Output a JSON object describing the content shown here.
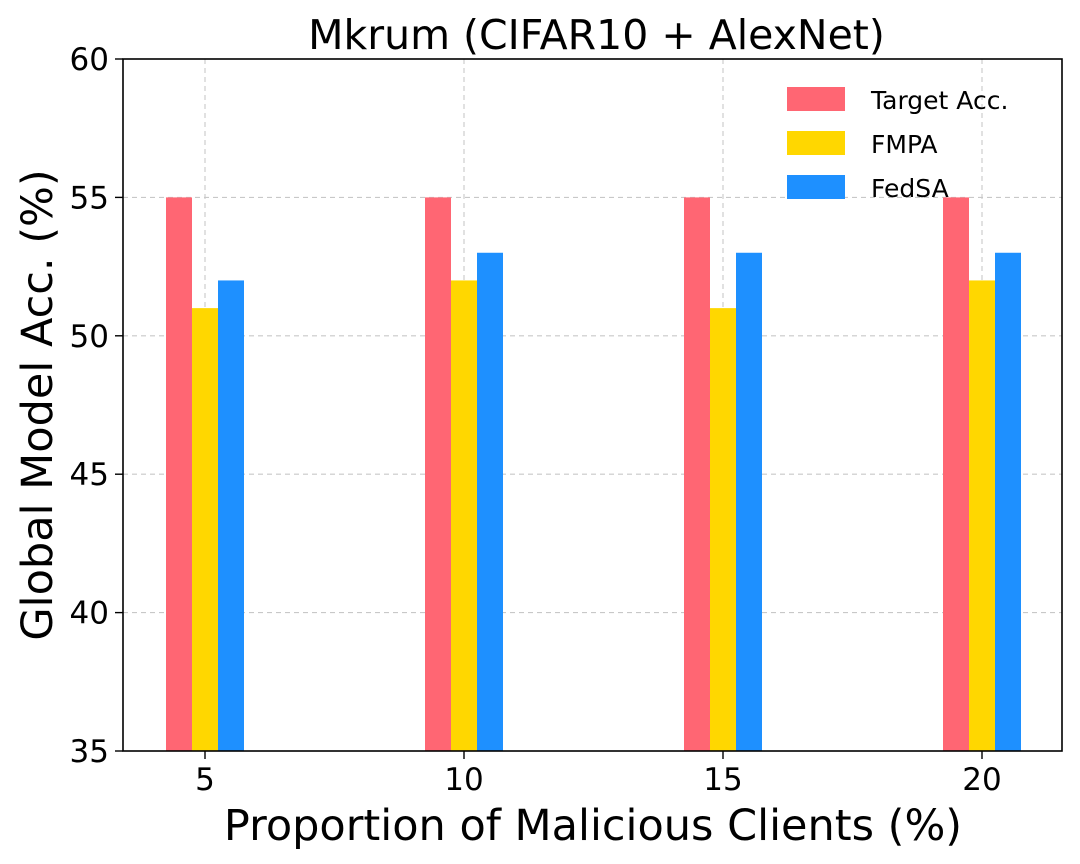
{
  "chart_data": {
    "type": "bar",
    "title": "Mkrum (CIFAR10 + AlexNet)",
    "xlabel": "Proportion of Malicious Clients (%)",
    "ylabel": "Global Model Acc. (%)",
    "categories": [
      "5",
      "10",
      "15",
      "20"
    ],
    "ylim": [
      35,
      60
    ],
    "yticks": [
      "35",
      "40",
      "45",
      "50",
      "55",
      "60"
    ],
    "grid": true,
    "legend_position": "top-right",
    "series": [
      {
        "name": "Target Acc.",
        "color": "#ff6673",
        "values": [
          55,
          55,
          55,
          55
        ]
      },
      {
        "name": "FMPA",
        "color": "#ffd700",
        "values": [
          51,
          52,
          51,
          52
        ]
      },
      {
        "name": "FedSA",
        "color": "#1e90ff",
        "values": [
          52,
          53,
          53,
          53
        ]
      }
    ]
  }
}
